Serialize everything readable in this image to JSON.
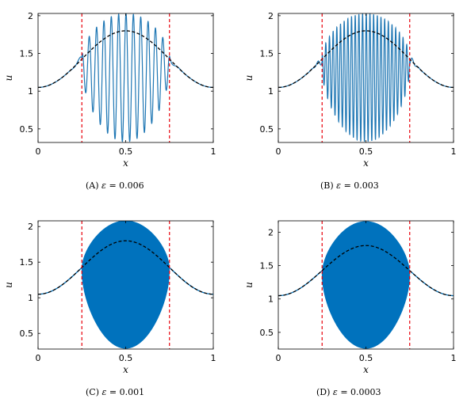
{
  "chart_data": [
    {
      "type": "line",
      "caption": {
        "tag": "(A)",
        "eps_symbol": "ε",
        "eps_value": "= 0.006"
      },
      "xlabel": "x",
      "ylabel": "u",
      "xlim": [
        0,
        1
      ],
      "ylim": [
        0.32,
        2.03
      ],
      "xticks": [
        0,
        0.5,
        1
      ],
      "xtick_labels": [
        "0",
        "0.5",
        "1"
      ],
      "yticks": [
        0.5,
        1,
        1.5,
        2
      ],
      "ytick_labels": [
        "0.5",
        "1",
        "1.5",
        "2"
      ],
      "epsilon": 0.006,
      "oscillation_window": [
        0.25,
        0.75
      ],
      "series": [
        {
          "style": "solid",
          "color": "#1f77b4"
        },
        {
          "style": "dashed",
          "color": "#000000"
        }
      ],
      "markers": [
        {
          "x": 0.25,
          "color": "#e8000b"
        },
        {
          "x": 0.75,
          "color": "#e8000b"
        }
      ],
      "curve": {
        "center_x": 0.5,
        "edge_value": 1.8,
        "center_value": 1.05
      },
      "envelope": {
        "upper_edge": 1.45,
        "upper_center": 2.03,
        "lower_edge": 1.3,
        "lower_center": 0.33
      }
    },
    {
      "type": "line",
      "caption": {
        "tag": "(B)",
        "eps_symbol": "ε",
        "eps_value": "= 0.003"
      },
      "xlabel": "x",
      "ylabel": "u",
      "xlim": [
        0,
        1
      ],
      "ylim": [
        0.32,
        2.03
      ],
      "xticks": [
        0,
        0.5,
        1
      ],
      "xtick_labels": [
        "0",
        "0.5",
        "1"
      ],
      "yticks": [
        0.5,
        1,
        1.5,
        2
      ],
      "ytick_labels": [
        "0.5",
        "1",
        "1.5",
        "2"
      ],
      "epsilon": 0.003,
      "oscillation_window": [
        0.25,
        0.75
      ],
      "series": [
        {
          "style": "solid",
          "color": "#1f77b4"
        },
        {
          "style": "dashed",
          "color": "#000000"
        }
      ],
      "markers": [
        {
          "x": 0.25,
          "color": "#e8000b"
        },
        {
          "x": 0.75,
          "color": "#e8000b"
        }
      ],
      "curve": {
        "center_x": 0.5,
        "edge_value": 1.8,
        "center_value": 1.05
      },
      "envelope": {
        "upper_edge": 1.45,
        "upper_center": 2.03,
        "lower_edge": 1.3,
        "lower_center": 0.33
      }
    },
    {
      "type": "line",
      "caption": {
        "tag": "(C)",
        "eps_symbol": "ε",
        "eps_value": "= 0.001"
      },
      "xlabel": "x",
      "ylabel": "u",
      "xlim": [
        0,
        1
      ],
      "ylim": [
        0.28,
        2.08
      ],
      "xticks": [
        0,
        0.5,
        1
      ],
      "xtick_labels": [
        "0",
        "0.5",
        "1"
      ],
      "yticks": [
        0.5,
        1,
        1.5,
        2
      ],
      "ytick_labels": [
        "0.5",
        "1",
        "1.5",
        "2"
      ],
      "epsilon": 0.001,
      "oscillation_window": [
        0.25,
        0.75
      ],
      "series": [
        {
          "style": "solid",
          "color": "#0072bd"
        },
        {
          "style": "dashed",
          "color": "#000000"
        }
      ],
      "markers": [
        {
          "x": 0.25,
          "color": "#e8000b"
        },
        {
          "x": 0.75,
          "color": "#e8000b"
        }
      ],
      "curve": {
        "center_x": 0.5,
        "edge_value": 1.8,
        "center_value": 1.05
      },
      "envelope": {
        "upper_edge": 1.4,
        "upper_center": 2.08,
        "lower_edge": 1.38,
        "lower_center": 0.29
      }
    },
    {
      "type": "line",
      "caption": {
        "tag": "(D)",
        "eps_symbol": "ε",
        "eps_value": "= 0.0003"
      },
      "xlabel": "x",
      "ylabel": "u",
      "xlim": [
        0,
        1
      ],
      "ylim": [
        0.25,
        2.17
      ],
      "xticks": [
        0,
        0.5,
        1
      ],
      "xtick_labels": [
        "0",
        "0.5",
        "1"
      ],
      "yticks": [
        0.5,
        1,
        1.5,
        2
      ],
      "ytick_labels": [
        "0.5",
        "1",
        "1.5",
        "2"
      ],
      "epsilon": 0.0003,
      "oscillation_window": [
        0.25,
        0.75
      ],
      "series": [
        {
          "style": "solid",
          "color": "#0072bd"
        },
        {
          "style": "dashed",
          "color": "#000000"
        }
      ],
      "markers": [
        {
          "x": 0.25,
          "color": "#e8000b"
        },
        {
          "x": 0.75,
          "color": "#e8000b"
        }
      ],
      "curve": {
        "center_x": 0.5,
        "edge_value": 1.8,
        "center_value": 1.05
      },
      "envelope": {
        "upper_edge": 1.37,
        "upper_center": 2.16,
        "lower_edge": 1.36,
        "lower_center": 0.26
      }
    }
  ]
}
